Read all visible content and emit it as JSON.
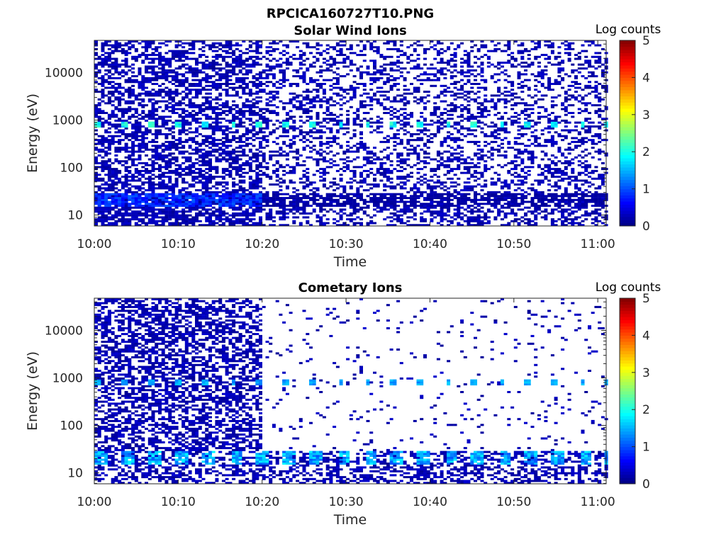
{
  "figure_title": "RPCICA160727T10.PNG",
  "colorbar": {
    "label": "Log counts",
    "ticks": [
      "0",
      "1",
      "2",
      "3",
      "4",
      "5"
    ],
    "range": [
      0,
      5
    ],
    "colormap": "jet"
  },
  "chart_data": [
    {
      "type": "heatmap",
      "title": "Solar Wind Ions",
      "xlabel": "Time",
      "ylabel": "Energy (eV)",
      "xticks": [
        "10:00",
        "10:10",
        "10:20",
        "10:30",
        "10:40",
        "10:50",
        "11:00"
      ],
      "yticks": [
        "10",
        "100",
        "1000",
        "10000"
      ],
      "xlim_minutes": [
        0,
        61
      ],
      "ylim_log10_eV": [
        0.77,
        4.68
      ],
      "y_scale": "log",
      "colorbar_range": [
        0,
        5
      ],
      "background_noise_log_counts": 0,
      "features": [
        {
          "name": "solar wind beam",
          "energy_eV": 750,
          "log_counts": 2.0,
          "period_min": 3.2,
          "time_span_min": [
            0,
            61
          ]
        },
        {
          "name": "low energy ions",
          "energy_eV": 20,
          "log_counts": 1.0,
          "time_span_min": [
            0,
            20
          ]
        },
        {
          "name": "low energy ions",
          "energy_eV": 20,
          "log_counts": 0.2,
          "time_span_min": [
            20,
            61
          ]
        }
      ]
    },
    {
      "type": "heatmap",
      "title": "Cometary Ions",
      "xlabel": "Time",
      "ylabel": "Energy (eV)",
      "xticks": [
        "10:00",
        "10:10",
        "10:20",
        "10:30",
        "10:40",
        "10:50",
        "11:00"
      ],
      "yticks": [
        "10",
        "100",
        "1000",
        "10000"
      ],
      "xlim_minutes": [
        0,
        61
      ],
      "ylim_log10_eV": [
        0.77,
        4.68
      ],
      "y_scale": "log",
      "colorbar_range": [
        0,
        5
      ],
      "background_noise_log_counts": 0,
      "features": [
        {
          "name": "dense noise region",
          "energy_eV_range": [
            6,
            40000
          ],
          "time_span_min": [
            0,
            20
          ]
        },
        {
          "name": "beam",
          "energy_eV": 750,
          "log_counts": 1.5,
          "period_min": 3.2,
          "time_span_min": [
            0,
            61
          ]
        },
        {
          "name": "cometary ions",
          "energy_eV": 20,
          "log_counts": 1.7,
          "period_min": 3.2,
          "time_span_min": [
            0,
            61
          ]
        }
      ]
    }
  ]
}
